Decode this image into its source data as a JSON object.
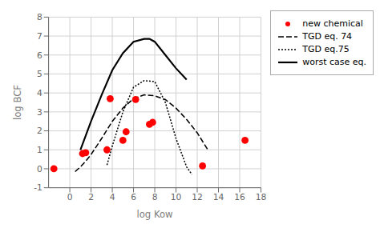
{
  "chart_data": {
    "type": "scatter",
    "xlabel": "log Kow",
    "ylabel": "log BCF",
    "xlim": [
      -2,
      18
    ],
    "ylim": [
      -1,
      8
    ],
    "xticks": [
      0,
      2,
      4,
      6,
      8,
      10,
      12,
      14,
      16,
      18
    ],
    "yticks": [
      -1,
      0,
      1,
      2,
      3,
      4,
      5,
      6,
      7,
      8
    ],
    "grid": true,
    "legend": "right",
    "series": [
      {
        "name": "new chemical",
        "type": "scatter",
        "color": "#ff0000",
        "marker": "dot",
        "x": [
          -1.5,
          1.2,
          1.5,
          3.5,
          3.8,
          5.0,
          5.3,
          6.2,
          7.5,
          7.8,
          12.5,
          16.5
        ],
        "values": [
          0.0,
          0.8,
          0.85,
          1.0,
          3.7,
          1.5,
          1.95,
          3.65,
          2.35,
          2.45,
          0.15,
          1.5
        ]
      },
      {
        "name": "TGD eq. 74",
        "type": "line",
        "color": "#000000",
        "line_style": "dashed",
        "x": [
          0.5,
          1.0,
          1.5,
          2,
          3,
          4,
          5,
          6,
          7,
          8,
          9,
          10,
          11,
          12,
          13
        ],
        "values": [
          -0.15,
          0.1,
          0.4,
          0.75,
          1.6,
          2.5,
          3.2,
          3.7,
          3.9,
          3.85,
          3.65,
          3.2,
          2.6,
          1.9,
          1.0
        ]
      },
      {
        "name": "TGD eq.75",
        "type": "line",
        "color": "#000000",
        "line_style": "dotted",
        "x": [
          3.5,
          4,
          5,
          6,
          7,
          8,
          9,
          10,
          11,
          11.5
        ],
        "values": [
          0.2,
          1.2,
          3.0,
          4.3,
          4.65,
          4.6,
          3.5,
          1.6,
          0.1,
          -0.3
        ]
      },
      {
        "name": "worst case eq.",
        "type": "line",
        "color": "#000000",
        "line_style": "solid",
        "x": [
          1.0,
          2,
          3,
          4,
          5,
          6,
          7,
          7.5,
          8,
          9,
          10,
          11
        ],
        "values": [
          1.0,
          2.5,
          3.9,
          5.2,
          6.1,
          6.7,
          6.85,
          6.85,
          6.7,
          6.0,
          5.3,
          4.7
        ]
      }
    ]
  }
}
